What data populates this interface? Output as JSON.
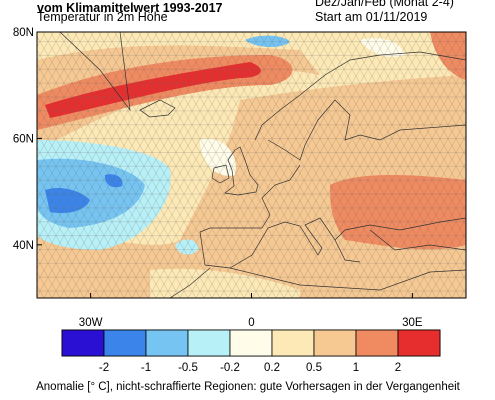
{
  "header": {
    "title_line1": "vom Klimamittelwert 1993-2017",
    "title_line2": "Temperatur in 2m Höhe",
    "season": "Dez/Jan/Feb (Monat 2-4)",
    "start": "Start am 01/11/2019"
  },
  "map": {
    "xlim": [
      -40,
      40
    ],
    "ylim": [
      30,
      80
    ],
    "xticks": [
      {
        "value": -30,
        "label": "30W"
      },
      0,
      {
        "value": 30,
        "label": "30E"
      }
    ],
    "yticks": [
      {
        "value": 80,
        "label": "80N"
      },
      {
        "value": 60,
        "label": "60N"
      },
      {
        "value": 40,
        "label": "40N"
      }
    ]
  },
  "colorbar": {
    "levels": [
      -2,
      -1,
      -0.5,
      -0.2,
      0.2,
      0.5,
      1,
      2
    ],
    "colors": [
      "#2a10d2",
      "#3a84ea",
      "#75c4f2",
      "#b8f0f8",
      "#fffdea",
      "#fde9b5",
      "#f6c892",
      "#f08a60",
      "#e62e2e"
    ]
  },
  "footer": "Anomalie [° C], nicht-schraffierte Regionen: gute Vorhersagen in der Vergangenheit"
}
